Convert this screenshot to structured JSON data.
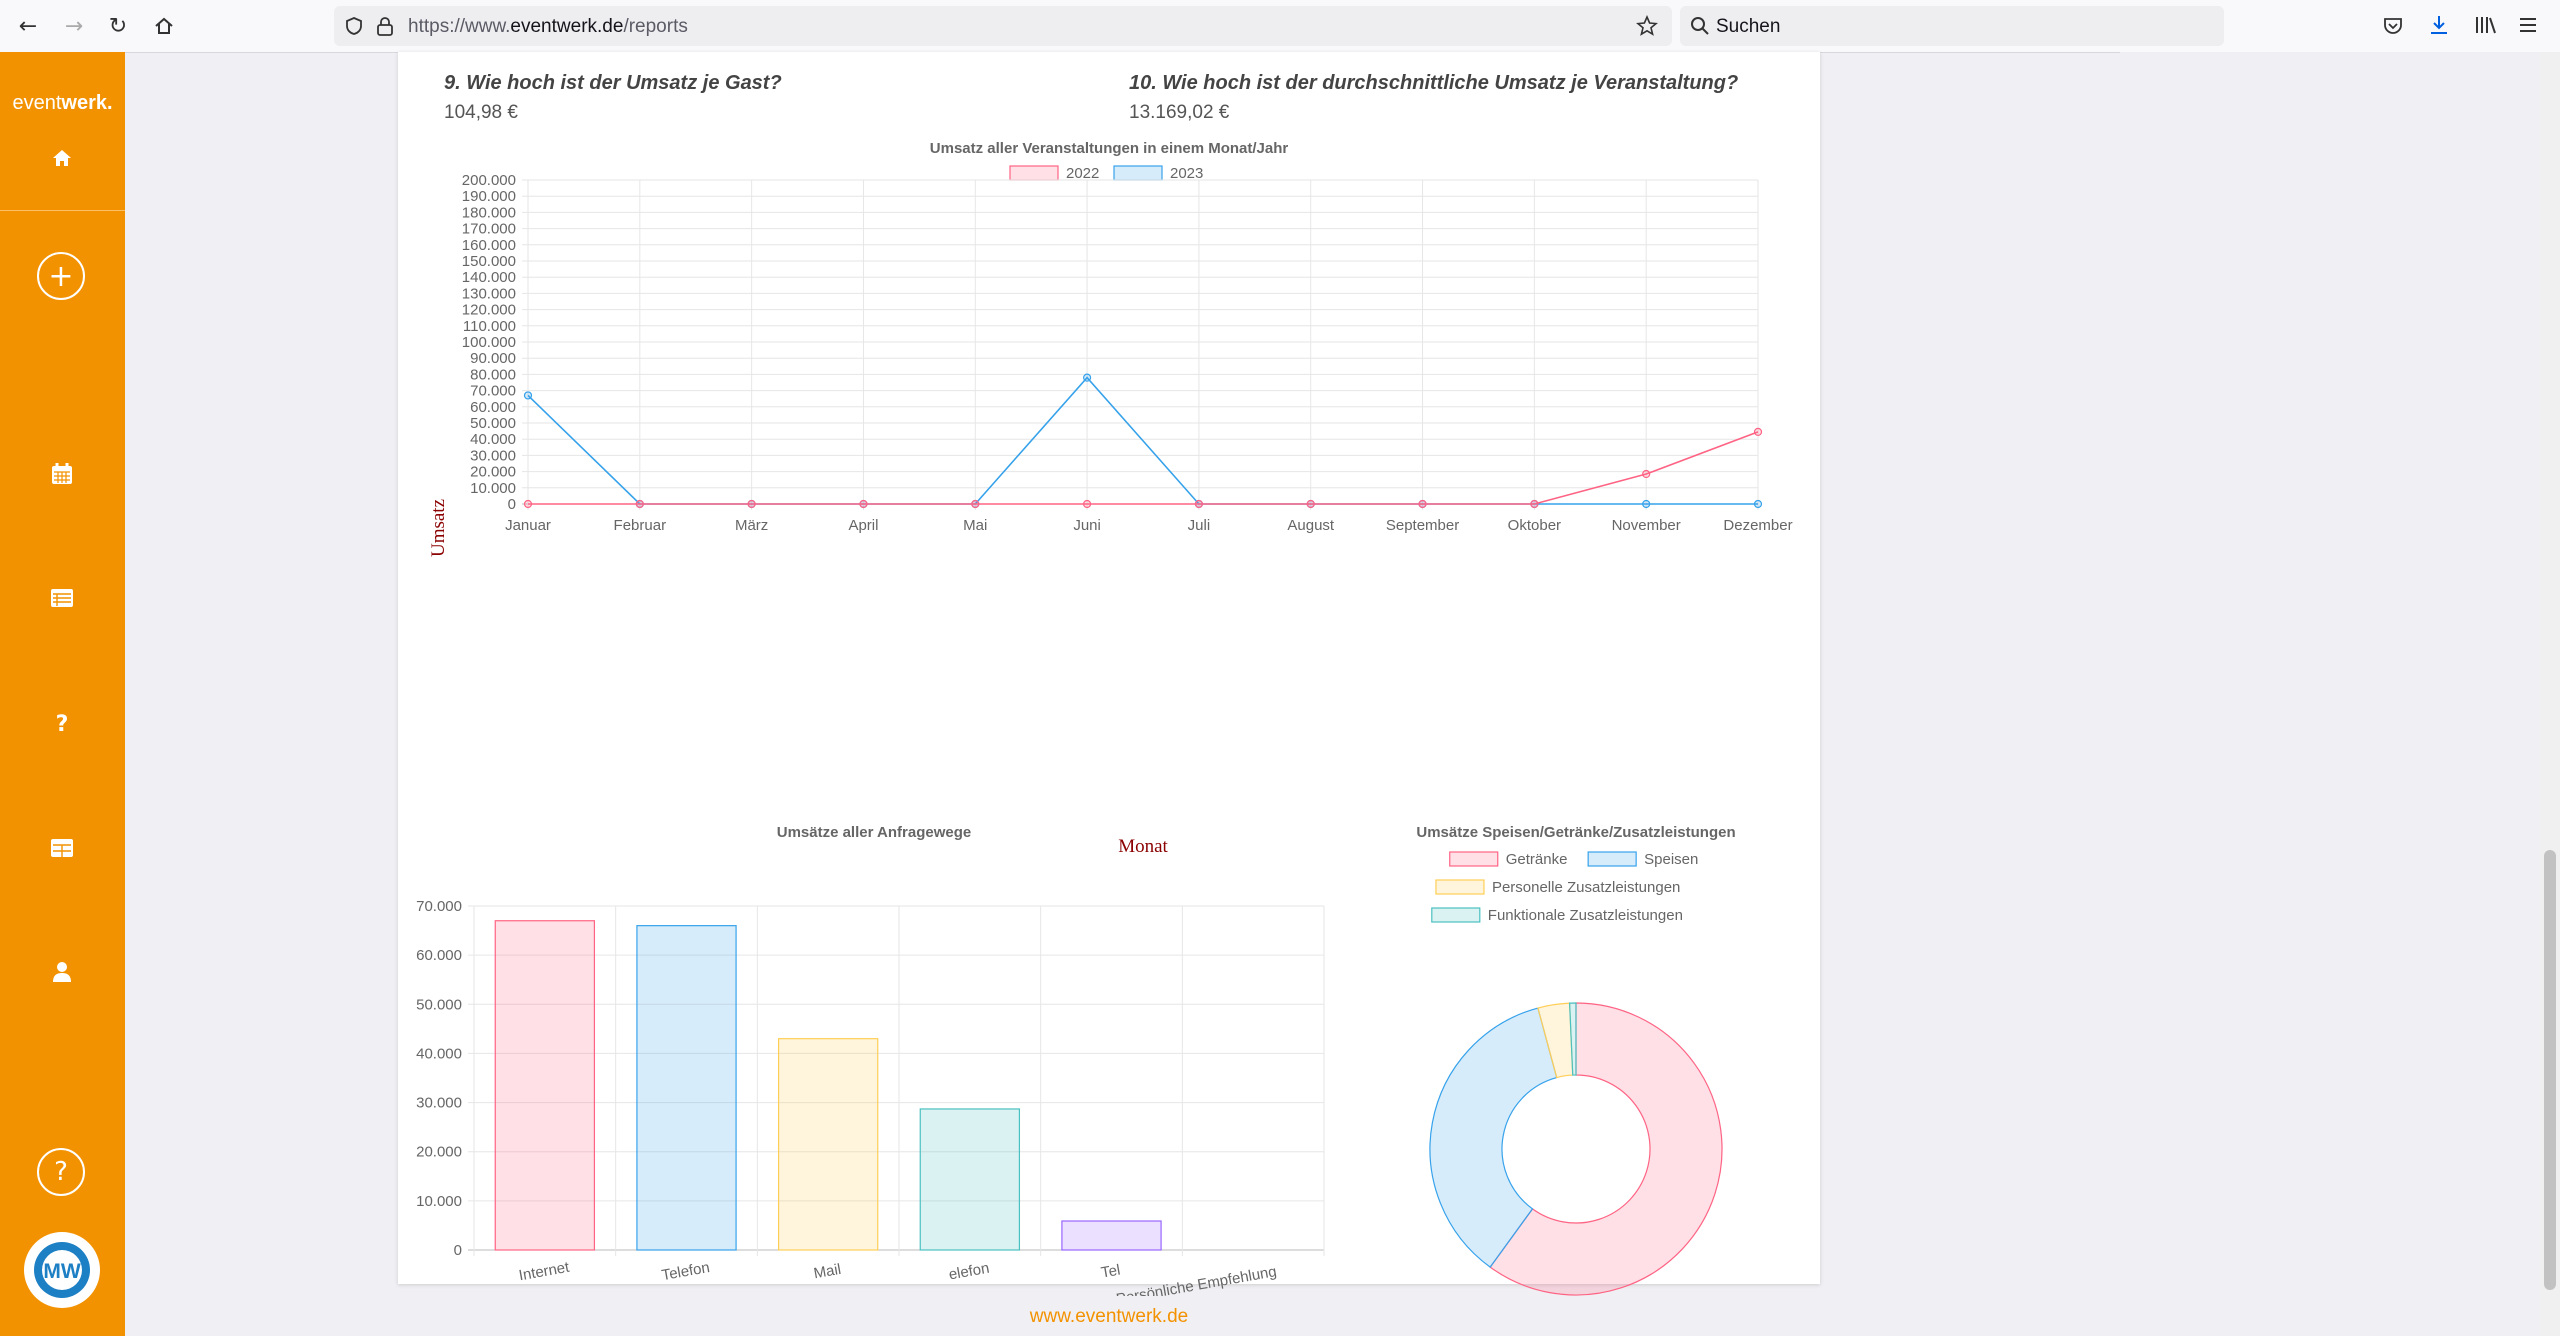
{
  "browser": {
    "url_prefix": "https://www.",
    "url_domain": "eventwerk.de",
    "url_path": "/reports",
    "search_placeholder": "Suchen"
  },
  "sidebar": {
    "brand_light": "event",
    "brand_bold": "werk.",
    "items": [
      {
        "name": "home",
        "icon": "home-icon"
      },
      {
        "name": "add",
        "icon": "plus-icon",
        "label": "+"
      },
      {
        "name": "calendar",
        "icon": "calendar-icon"
      },
      {
        "name": "list",
        "icon": "list-icon"
      },
      {
        "name": "help-small",
        "icon": "question-icon",
        "label": "?"
      },
      {
        "name": "reports",
        "icon": "table-icon"
      },
      {
        "name": "user",
        "icon": "user-icon"
      },
      {
        "name": "help",
        "icon": "help-circle-icon",
        "label": "?"
      }
    ],
    "avatar_initials": "MW"
  },
  "questions": [
    {
      "q": "9. Wie hoch ist der Umsatz je Gast?",
      "a": "104,98 €"
    },
    {
      "q": "10. Wie hoch ist der durchschnittliche Umsatz je Veranstaltung?",
      "a": "13.169,02 €"
    }
  ],
  "footer": "www.eventwerk.de",
  "colors": {
    "accent": "#f39200",
    "pink": "#ff6384",
    "blue": "#36a2eb",
    "yellow": "#ffce56",
    "teal": "#4bc0c0",
    "purple": "#9966ff"
  },
  "chart_data": [
    {
      "type": "line",
      "title": "Umsatz aller Veranstaltungen in einem Monat/Jahr",
      "xlabel": "Monat",
      "ylabel": "Umsatz",
      "categories": [
        "Januar",
        "Februar",
        "März",
        "April",
        "Mai",
        "Juni",
        "Juli",
        "August",
        "September",
        "Oktober",
        "November",
        "Dezember"
      ],
      "ylim": [
        0,
        200000
      ],
      "ytick_step": 10000,
      "yticks": [
        "0",
        "10.000",
        "20.000",
        "30.000",
        "40.000",
        "50.000",
        "60.000",
        "70.000",
        "80.000",
        "90.000",
        "100.000",
        "110.000",
        "120.000",
        "130.000",
        "140.000",
        "150.000",
        "160.000",
        "170.000",
        "180.000",
        "190.000",
        "200.000"
      ],
      "legend_position": "top",
      "grid": true,
      "series": [
        {
          "name": "2022",
          "color": "#ff6384",
          "values": [
            0,
            0,
            0,
            0,
            0,
            0,
            0,
            0,
            0,
            0,
            18500,
            44500
          ]
        },
        {
          "name": "2023",
          "color": "#36a2eb",
          "values": [
            67000,
            0,
            0,
            0,
            0,
            78000,
            0,
            0,
            0,
            0,
            0,
            0
          ]
        }
      ]
    },
    {
      "type": "bar",
      "title": "Umsätze aller Anfragewege",
      "categories": [
        "Internet",
        "Telefon",
        "Mail",
        "elefon",
        "Tel",
        "Persönliche Empfehlung"
      ],
      "values": [
        67000,
        66000,
        43000,
        28700,
        5900,
        0
      ],
      "colors": [
        "#ff6384",
        "#36a2eb",
        "#ffce56",
        "#4bc0c0",
        "#9966ff",
        "#ff9f40"
      ],
      "ylim": [
        0,
        70000
      ],
      "yticks": [
        "0",
        "10.000",
        "20.000",
        "30.000",
        "40.000",
        "50.000",
        "60.000",
        "70.000"
      ],
      "grid": true
    },
    {
      "type": "pie",
      "title": "Umsätze Speisen/Getränke/Zusatzleistungen",
      "categories": [
        "Getränke",
        "Speisen",
        "Personelle Zusatzleistungen",
        "Funktionale Zusatzleistungen"
      ],
      "values": [
        60,
        35.8,
        3.5,
        0.7
      ],
      "colors": [
        "#ff6384",
        "#36a2eb",
        "#ffce56",
        "#4bc0c0"
      ],
      "legend_position": "top",
      "donut": true
    }
  ]
}
